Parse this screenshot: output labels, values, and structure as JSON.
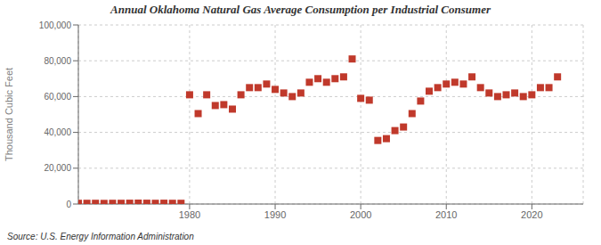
{
  "chart_data": {
    "type": "scatter",
    "title": "Annual Oklahoma Natural Gas Average Consumption per Industrial Consumer",
    "ylabel": "Thousand Cubic Feet",
    "source": "Source: U.S. Energy Information Administration",
    "x": [
      1967,
      1968,
      1969,
      1970,
      1971,
      1972,
      1973,
      1974,
      1975,
      1976,
      1977,
      1978,
      1979,
      1980,
      1981,
      1982,
      1983,
      1984,
      1985,
      1986,
      1987,
      1988,
      1989,
      1990,
      1991,
      1992,
      1993,
      1994,
      1995,
      1996,
      1997,
      1998,
      1999,
      2000,
      2001,
      2002,
      2003,
      2004,
      2005,
      2006,
      2007,
      2008,
      2009,
      2010,
      2011,
      2012,
      2013,
      2014,
      2015,
      2016,
      2017,
      2018,
      2019,
      2020,
      2021,
      2022,
      2023
    ],
    "values": [
      400,
      400,
      400,
      350,
      400,
      400,
      450,
      500,
      450,
      400,
      450,
      400,
      400,
      61000,
      50500,
      61000,
      55000,
      55500,
      53000,
      61000,
      65000,
      65000,
      67000,
      64000,
      62000,
      60000,
      62000,
      68000,
      70000,
      68000,
      70000,
      71000,
      81000,
      59000,
      58000,
      35500,
      36500,
      41000,
      43000,
      50500,
      57500,
      63000,
      65000,
      67000,
      68000,
      67000,
      71000,
      65000,
      62000,
      60000,
      61000,
      62000,
      60000,
      61000,
      65000,
      65000,
      71000
    ],
    "color": "#c0392b",
    "marker": "square",
    "xlim": [
      1967,
      2026
    ],
    "xticks": [
      1980,
      1990,
      2000,
      2010,
      2020
    ],
    "ylim": [
      0,
      100000
    ],
    "yticks": [
      0,
      {
        "value": 20000,
        "label": "20,000"
      },
      {
        "value": 40000,
        "label": "40,000"
      },
      {
        "value": 60000,
        "label": "60,000"
      },
      {
        "value": 80000,
        "label": "80,000"
      },
      {
        "value": 100000,
        "label": "100,000"
      }
    ],
    "grid": true
  }
}
